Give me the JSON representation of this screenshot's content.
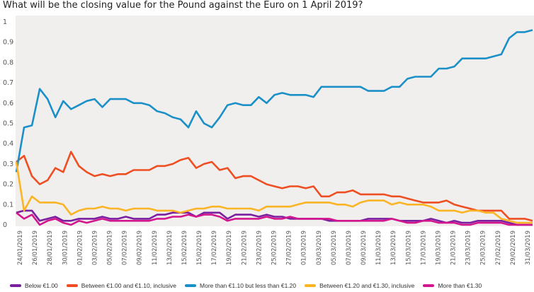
{
  "chart_data": {
    "type": "line",
    "title": "What will be the closing value for the Pound against the Euro on 1 April 2019?",
    "xlabel": "",
    "ylabel": "",
    "ylim": [
      0,
      1
    ],
    "yticks": [
      "0",
      "0.1",
      "0.2",
      "0.3",
      "0.4",
      "0.5",
      "0.6",
      "0.7",
      "0.8",
      "0.9",
      "1"
    ],
    "grid": false,
    "legend": "bottom",
    "x_tick_labels": [
      "24/01/2019",
      "26/01/2019",
      "28/01/2019",
      "30/01/2019",
      "01/02/2019",
      "03/02/2019",
      "05/02/2019",
      "07/02/2019",
      "09/02/2019",
      "11/02/2019",
      "13/02/2019",
      "15/02/2019",
      "15/02/2019",
      "17/02/2019",
      "19/02/2019",
      "21/02/2019",
      "23/02/2019",
      "25/02/2019",
      "27/02/2019",
      "01/03/2019",
      "03/03/2019",
      "05/03/2019",
      "07/03/2019",
      "09/03/2019",
      "11/03/2019",
      "13/03/2019",
      "15/03/2019",
      "17/03/2019",
      "19/03/2019",
      "21/03/2019",
      "23/03/2019",
      "25/03/2019",
      "27/02/2019",
      "29/02/2019",
      "31/03/2019"
    ],
    "series": [
      {
        "name": "Below €1.00",
        "color": "#7a1fa0",
        "values": [
          0.06,
          0.07,
          0.07,
          0.02,
          0.03,
          0.04,
          0.02,
          0.02,
          0.03,
          0.03,
          0.03,
          0.04,
          0.03,
          0.03,
          0.04,
          0.03,
          0.03,
          0.03,
          0.05,
          0.05,
          0.06,
          0.06,
          0.06,
          0.04,
          0.06,
          0.06,
          0.06,
          0.03,
          0.05,
          0.05,
          0.05,
          0.04,
          0.05,
          0.04,
          0.04,
          0.03,
          0.03,
          0.03,
          0.03,
          0.03,
          0.02,
          0.02,
          0.02,
          0.02,
          0.02,
          0.03,
          0.03,
          0.03,
          0.03,
          0.02,
          0.02,
          0.02,
          0.02,
          0.03,
          0.02,
          0.01,
          0.02,
          0.01,
          0.01,
          0.02,
          0.02,
          0.02,
          0.02,
          0.01,
          0.0,
          0.0,
          0.0
        ]
      },
      {
        "name": "Between €1.00 and €1.10, inclusive",
        "color": "#ef4e22",
        "values": [
          0.31,
          0.34,
          0.24,
          0.2,
          0.22,
          0.28,
          0.26,
          0.36,
          0.29,
          0.26,
          0.24,
          0.25,
          0.24,
          0.25,
          0.25,
          0.27,
          0.27,
          0.27,
          0.29,
          0.29,
          0.3,
          0.32,
          0.33,
          0.28,
          0.3,
          0.31,
          0.27,
          0.28,
          0.23,
          0.24,
          0.24,
          0.22,
          0.2,
          0.19,
          0.18,
          0.19,
          0.19,
          0.18,
          0.19,
          0.14,
          0.14,
          0.16,
          0.16,
          0.17,
          0.15,
          0.15,
          0.15,
          0.15,
          0.14,
          0.14,
          0.13,
          0.12,
          0.11,
          0.11,
          0.11,
          0.12,
          0.1,
          0.09,
          0.08,
          0.07,
          0.07,
          0.07,
          0.07,
          0.03,
          0.03,
          0.03,
          0.02
        ]
      },
      {
        "name": "More than €1.10 but less than €1.20",
        "color": "#1b90c8",
        "values": [
          0.26,
          0.48,
          0.49,
          0.67,
          0.62,
          0.53,
          0.61,
          0.57,
          0.59,
          0.61,
          0.62,
          0.58,
          0.62,
          0.62,
          0.62,
          0.6,
          0.6,
          0.59,
          0.56,
          0.55,
          0.53,
          0.52,
          0.48,
          0.56,
          0.5,
          0.48,
          0.53,
          0.59,
          0.6,
          0.59,
          0.59,
          0.63,
          0.6,
          0.64,
          0.65,
          0.64,
          0.64,
          0.64,
          0.63,
          0.68,
          0.68,
          0.68,
          0.68,
          0.68,
          0.68,
          0.66,
          0.66,
          0.66,
          0.68,
          0.68,
          0.72,
          0.73,
          0.73,
          0.73,
          0.77,
          0.77,
          0.78,
          0.82,
          0.82,
          0.82,
          0.82,
          0.83,
          0.84,
          0.92,
          0.95,
          0.95,
          0.96
        ]
      },
      {
        "name": "Between €1.20 and €1.30, inclusive",
        "color": "#fbb424",
        "values": [
          0.31,
          0.07,
          0.14,
          0.11,
          0.11,
          0.11,
          0.1,
          0.05,
          0.07,
          0.08,
          0.08,
          0.09,
          0.08,
          0.08,
          0.07,
          0.08,
          0.08,
          0.08,
          0.07,
          0.07,
          0.07,
          0.06,
          0.07,
          0.08,
          0.08,
          0.09,
          0.09,
          0.08,
          0.08,
          0.08,
          0.08,
          0.07,
          0.09,
          0.09,
          0.09,
          0.09,
          0.1,
          0.11,
          0.11,
          0.11,
          0.11,
          0.1,
          0.1,
          0.09,
          0.11,
          0.12,
          0.12,
          0.12,
          0.1,
          0.11,
          0.1,
          0.1,
          0.1,
          0.09,
          0.07,
          0.07,
          0.07,
          0.06,
          0.07,
          0.07,
          0.06,
          0.06,
          0.03,
          0.02,
          0.01,
          0.01,
          0.01
        ]
      },
      {
        "name": "More than €1.30",
        "color": "#d3168e",
        "values": [
          0.06,
          0.03,
          0.05,
          0.0,
          0.02,
          0.03,
          0.01,
          0.0,
          0.02,
          0.01,
          0.02,
          0.03,
          0.02,
          0.02,
          0.02,
          0.02,
          0.02,
          0.02,
          0.03,
          0.03,
          0.04,
          0.04,
          0.05,
          0.04,
          0.05,
          0.05,
          0.04,
          0.02,
          0.03,
          0.03,
          0.03,
          0.03,
          0.04,
          0.03,
          0.03,
          0.04,
          0.03,
          0.03,
          0.03,
          0.03,
          0.03,
          0.02,
          0.02,
          0.02,
          0.02,
          0.02,
          0.02,
          0.02,
          0.03,
          0.02,
          0.01,
          0.01,
          0.02,
          0.02,
          0.01,
          0.01,
          0.01,
          0.0,
          0.0,
          0.01,
          0.01,
          0.01,
          0.01,
          0.0,
          0.0,
          0.0,
          0.0
        ]
      }
    ]
  }
}
